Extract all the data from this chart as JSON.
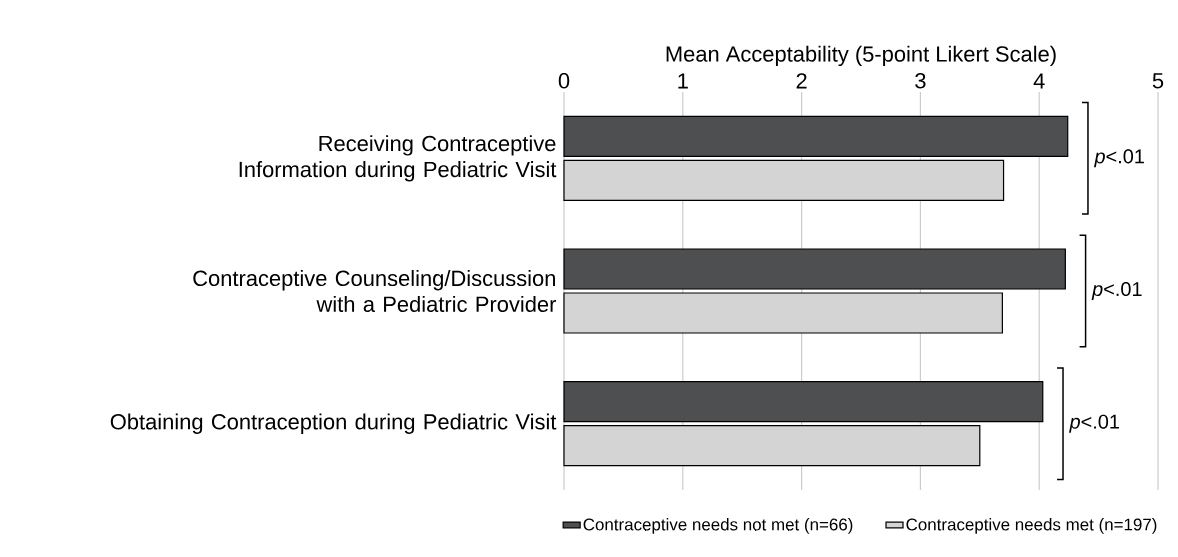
{
  "chart_data": {
    "type": "bar",
    "orientation": "horizontal",
    "xlabel": "Mean Acceptability (5-point Likert Scale)",
    "categories": [
      "Receiving Contraceptive Information during Pediatric Visit",
      "Contraceptive Counseling/Discussion with a Pediatric Provider",
      "Obtaining Contraception during Pediatric Visit"
    ],
    "series": [
      {
        "name": "Contraceptive needs not met (n=66)",
        "color": "#4d4f51",
        "values": [
          4.24,
          4.22,
          4.03
        ]
      },
      {
        "name": "Contraceptive needs met (n=197)",
        "color": "#d3d4d3",
        "values": [
          3.7,
          3.69,
          3.5
        ]
      }
    ],
    "xlim": [
      0,
      5
    ],
    "xticks": [
      0,
      1,
      2,
      3,
      4,
      5
    ],
    "grid": "x",
    "legend": "bottom",
    "annotations": [
      "*p*<.01",
      "*p*<.01",
      "*p*<.01"
    ]
  }
}
